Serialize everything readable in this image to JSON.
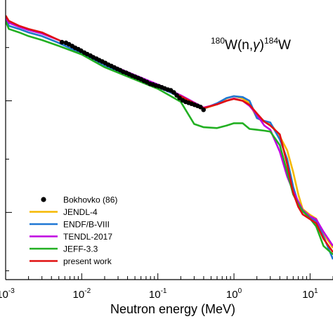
{
  "chart_data": {
    "type": "line",
    "title": "",
    "annotation": {
      "target_mass": "180",
      "target": "W(n,",
      "particle": "γ",
      "close": ")",
      "product_mass": "184",
      "product": "W"
    },
    "xlabel": "Neutron energy (MeV)",
    "ylabel": "",
    "x_scale": "log",
    "xlim": [
      0.001,
      20
    ],
    "x_ticks": [
      {
        "value": 0.001,
        "base": "10",
        "exp": "-3"
      },
      {
        "value": 0.01,
        "base": "10",
        "exp": "-2"
      },
      {
        "value": 0.1,
        "base": "10",
        "exp": "-1"
      },
      {
        "value": 1,
        "base": "10",
        "exp": "0"
      },
      {
        "value": 10,
        "base": "10",
        "exp": "1"
      }
    ],
    "y_scale": "log",
    "ylim": [
      0.0025,
      0.8
    ],
    "y_major_ticks": [
      0.01,
      0.1
    ],
    "y_minor_ticks": [
      0.3,
      0.03,
      0.003
    ],
    "grid": false,
    "legend_position": "bottom-left",
    "series": [
      {
        "name": "Bokhovko (86)",
        "kind": "points",
        "color": "#000000",
        "x": [
          0.0055,
          0.0062,
          0.0068,
          0.0075,
          0.0082,
          0.009,
          0.0098,
          0.0108,
          0.0118,
          0.013,
          0.0142,
          0.0156,
          0.017,
          0.0186,
          0.0204,
          0.0223,
          0.0245,
          0.0268,
          0.0293,
          0.032,
          0.035,
          0.0384,
          0.042,
          0.046,
          0.0503,
          0.055,
          0.0602,
          0.0658,
          0.072,
          0.0788,
          0.0862,
          0.094,
          0.103,
          0.113,
          0.123,
          0.135,
          0.148,
          0.162,
          0.177,
          0.193,
          0.212,
          0.231,
          0.253,
          0.277,
          0.303,
          0.332,
          0.363,
          0.398
        ],
        "y": [
          0.335,
          0.331,
          0.321,
          0.309,
          0.298,
          0.29,
          0.281,
          0.27,
          0.262,
          0.254,
          0.245,
          0.238,
          0.231,
          0.225,
          0.218,
          0.211,
          0.205,
          0.199,
          0.193,
          0.188,
          0.182,
          0.178,
          0.173,
          0.168,
          0.164,
          0.16,
          0.156,
          0.151,
          0.147,
          0.142,
          0.14,
          0.137,
          0.135,
          0.132,
          0.129,
          0.126,
          0.124,
          0.119,
          0.112,
          0.106,
          0.101,
          0.098,
          0.096,
          0.094,
          0.092,
          0.09,
          0.088,
          0.083
        ]
      },
      {
        "name": "JENDL-4",
        "kind": "line",
        "color": "#f5b800",
        "x": [
          0.001,
          0.0011,
          0.0015,
          0.002,
          0.003,
          0.005,
          0.01,
          0.02,
          0.05,
          0.1,
          0.2,
          0.4,
          0.6,
          0.8,
          1.0,
          1.3,
          1.6,
          2.0,
          2.5,
          3.0,
          4.0,
          5.0,
          6.0,
          7.0,
          8.0,
          10.0,
          12.0,
          15.0,
          20.0
        ],
        "y": [
          0.55,
          0.47,
          0.44,
          0.41,
          0.38,
          0.33,
          0.27,
          0.21,
          0.165,
          0.135,
          0.11,
          0.085,
          0.093,
          0.105,
          0.11,
          0.105,
          0.095,
          0.07,
          0.065,
          0.063,
          0.048,
          0.036,
          0.023,
          0.0145,
          0.0107,
          0.0095,
          0.0088,
          0.0064,
          0.0048
        ]
      },
      {
        "name": "ENDF/B-VIII",
        "kind": "line",
        "color": "#1f77d4",
        "x": [
          0.001,
          0.0011,
          0.0015,
          0.002,
          0.003,
          0.005,
          0.01,
          0.02,
          0.05,
          0.1,
          0.2,
          0.4,
          0.6,
          0.8,
          1.0,
          1.3,
          1.6,
          2.0,
          2.5,
          3.0,
          4.0,
          5.0,
          6.0,
          7.0,
          8.0,
          10.0,
          12.0,
          15.0,
          20.0
        ],
        "y": [
          0.56,
          0.47,
          0.44,
          0.41,
          0.38,
          0.33,
          0.265,
          0.205,
          0.16,
          0.133,
          0.108,
          0.085,
          0.095,
          0.106,
          0.11,
          0.108,
          0.1,
          0.07,
          0.066,
          0.064,
          0.045,
          0.03,
          0.017,
          0.012,
          0.0102,
          0.009,
          0.0084,
          0.0061,
          0.0038
        ]
      },
      {
        "name": "TENDL-2017",
        "kind": "line",
        "color": "#bf00e0",
        "x": [
          0.001,
          0.0011,
          0.0015,
          0.002,
          0.003,
          0.005,
          0.01,
          0.02,
          0.05,
          0.1,
          0.2,
          0.4,
          0.6,
          0.8,
          1.0,
          1.3,
          1.6,
          2.0,
          2.5,
          3.0,
          4.0,
          5.0,
          6.0,
          7.0,
          8.0,
          10.0,
          12.0,
          15.0,
          20.0
        ],
        "y": [
          0.55,
          0.5,
          0.46,
          0.43,
          0.4,
          0.35,
          0.28,
          0.22,
          0.17,
          0.14,
          0.112,
          0.087,
          0.093,
          0.1,
          0.105,
          0.1,
          0.09,
          0.075,
          0.06,
          0.055,
          0.035,
          0.021,
          0.0155,
          0.0125,
          0.0105,
          0.0092,
          0.0087,
          0.0067,
          0.005
        ]
      },
      {
        "name": "JEFF-3.3",
        "kind": "line",
        "color": "#22b022",
        "x": [
          0.001,
          0.0011,
          0.0015,
          0.002,
          0.003,
          0.005,
          0.01,
          0.02,
          0.05,
          0.1,
          0.2,
          0.3,
          0.4,
          0.6,
          0.8,
          1.0,
          1.3,
          1.6,
          2.0,
          2.5,
          3.0,
          4.0,
          5.0,
          6.0,
          7.0,
          8.0,
          10.0,
          12.0,
          15.0,
          20.0
        ],
        "y": [
          0.52,
          0.44,
          0.41,
          0.38,
          0.35,
          0.31,
          0.26,
          0.2,
          0.155,
          0.128,
          0.098,
          0.062,
          0.058,
          0.057,
          0.06,
          0.063,
          0.063,
          0.056,
          0.055,
          0.054,
          0.053,
          0.04,
          0.023,
          0.0145,
          0.0118,
          0.0103,
          0.0088,
          0.0075,
          0.005,
          0.0042
        ]
      },
      {
        "name": "present work",
        "kind": "line",
        "color": "#e01010",
        "x": [
          0.001,
          0.0011,
          0.0015,
          0.002,
          0.003,
          0.005,
          0.01,
          0.02,
          0.05,
          0.1,
          0.2,
          0.4,
          0.6,
          0.8,
          1.0,
          1.3,
          1.6,
          2.0,
          2.5,
          3.0,
          4.0,
          5.0,
          6.0,
          7.0,
          8.0,
          10.0,
          12.0,
          15.0,
          20.0
        ],
        "y": [
          0.58,
          0.52,
          0.47,
          0.44,
          0.41,
          0.35,
          0.28,
          0.215,
          0.165,
          0.136,
          0.11,
          0.086,
          0.093,
          0.1,
          0.104,
          0.1,
          0.092,
          0.077,
          0.065,
          0.06,
          0.05,
          0.027,
          0.015,
          0.0112,
          0.0096,
          0.0087,
          0.008,
          0.0058,
          0.0044
        ]
      }
    ]
  }
}
